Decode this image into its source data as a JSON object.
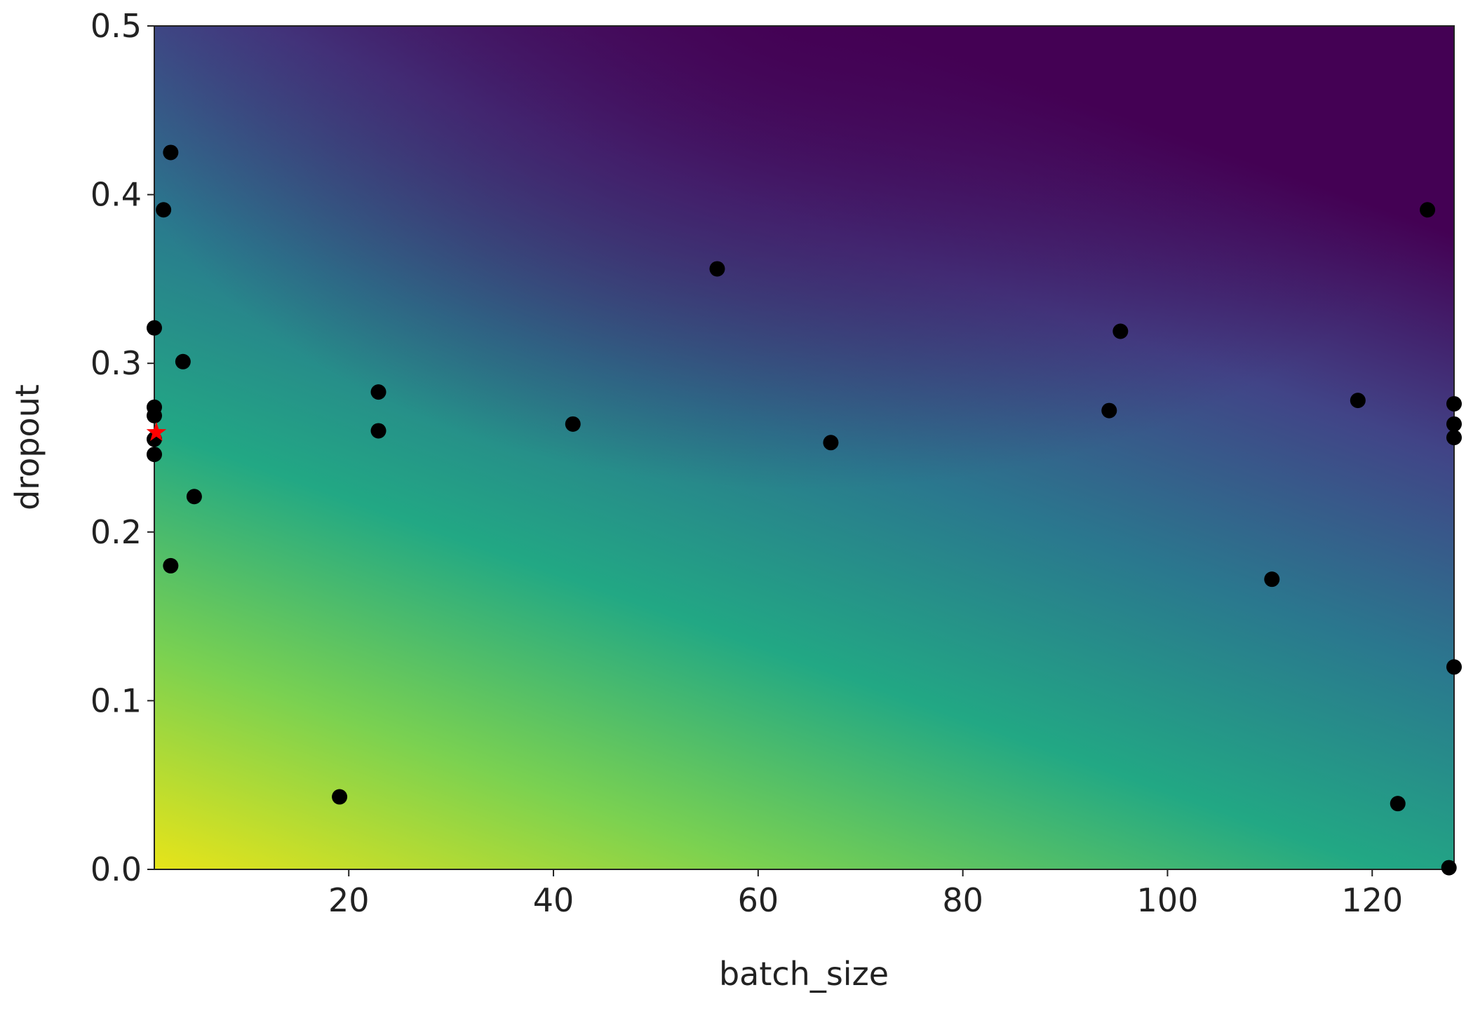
{
  "chart_data": {
    "type": "scatter",
    "x_label": "batch_size",
    "y_label": "dropout",
    "x": [
      2.6,
      1.9,
      1,
      3.8,
      1,
      1,
      1,
      1,
      4.9,
      2.6,
      22.9,
      22.9,
      41.9,
      56.0,
      67.1,
      19.1,
      94.3,
      95.4,
      110.2,
      118.6,
      125.4,
      122.5,
      128,
      128,
      128,
      128,
      127.5
    ],
    "values": [
      0.425,
      0.391,
      0.321,
      0.301,
      0.274,
      0.269,
      0.255,
      0.246,
      0.221,
      0.18,
      0.283,
      0.26,
      0.264,
      0.356,
      0.253,
      0.043,
      0.272,
      0.319,
      0.172,
      0.278,
      0.391,
      0.039,
      0.276,
      0.264,
      0.256,
      0.12,
      0.001
    ],
    "color": "#000000",
    "best": {
      "x": 1.2,
      "y": 0.259,
      "color": "#ff0000"
    },
    "xlim": [
      1,
      128
    ],
    "ylim": [
      0,
      0.5
    ],
    "xticks": [
      20,
      40,
      60,
      80,
      100,
      120
    ],
    "yticks": [
      {
        "value": 0,
        "label": "0.0"
      },
      0.1,
      0.2,
      0.3,
      0.4,
      0.5
    ]
  }
}
